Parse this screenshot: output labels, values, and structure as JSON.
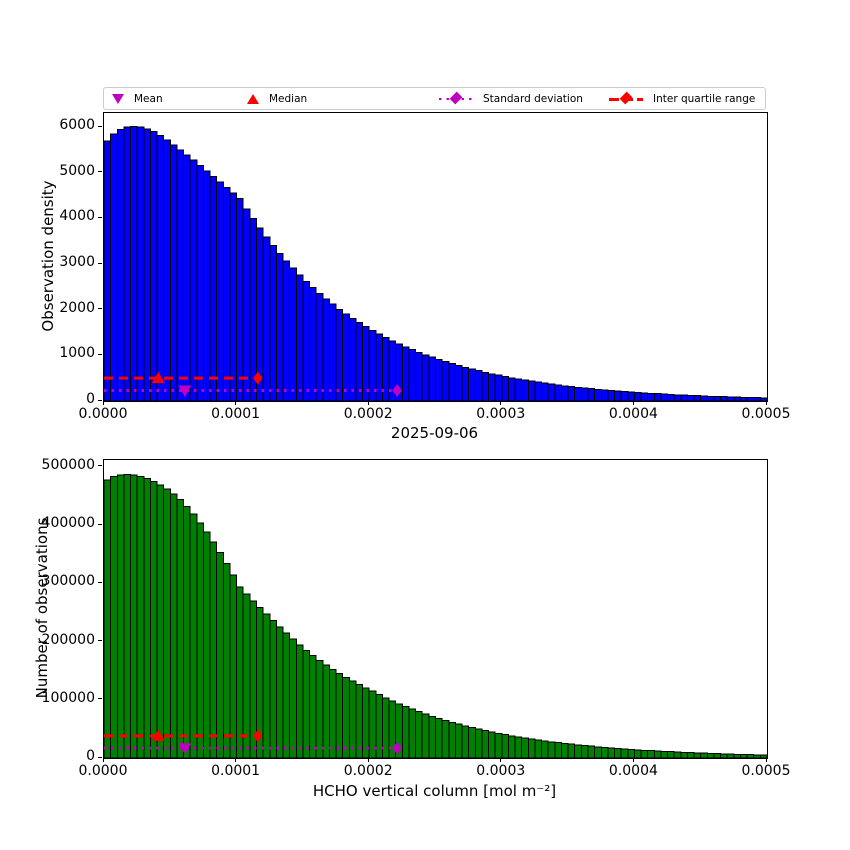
{
  "legend": {
    "items": [
      {
        "label": "Mean",
        "marker": "triangle-down-icon",
        "color": "#BF00BF"
      },
      {
        "label": "Median",
        "marker": "triangle-up-icon",
        "color": "#FF0000"
      },
      {
        "label": "Standard deviation",
        "marker": "dotted-line-diamond-icon",
        "color": "#BF00BF"
      },
      {
        "label": "Inter quartile range",
        "marker": "dashed-line-diamond-icon",
        "color": "#FF0000"
      }
    ]
  },
  "chart_data": [
    {
      "type": "bar",
      "name": "observation-density-histogram",
      "bar_color": "#0000FF",
      "edge_color": "#000000",
      "ylabel": "Observation density",
      "xlabel": "2025-09-06",
      "xlim": [
        0,
        0.0005
      ],
      "ylim": [
        0,
        6310
      ],
      "x_tick_values": [
        0,
        0.0001,
        0.0002,
        0.0003,
        0.0004,
        0.0005
      ],
      "x_tick_labels": [
        "0.0000",
        "0.0001",
        "0.0002",
        "0.0003",
        "0.0004",
        "0.0005"
      ],
      "y_tick_values": [
        0,
        1000,
        2000,
        3000,
        4000,
        5000,
        6000
      ],
      "y_tick_labels": [
        "0",
        "1000",
        "2000",
        "3000",
        "4000",
        "5000",
        "6000"
      ],
      "bin_start": 0,
      "bin_width": 5e-06,
      "values": [
        5700,
        5850,
        5950,
        6000,
        6010,
        6000,
        5960,
        5900,
        5820,
        5720,
        5610,
        5500,
        5390,
        5280,
        5160,
        5040,
        4920,
        4800,
        4680,
        4560,
        4440,
        4210,
        3995,
        3790,
        3595,
        3410,
        3235,
        3070,
        2910,
        2760,
        2620,
        2485,
        2355,
        2235,
        2120,
        2010,
        1905,
        1810,
        1715,
        1630,
        1545,
        1465,
        1390,
        1320,
        1250,
        1185,
        1125,
        1065,
        1010,
        960,
        910,
        865,
        820,
        775,
        735,
        700,
        663,
        629,
        597,
        566,
        537,
        509,
        483,
        458,
        434,
        412,
        391,
        371,
        352,
        334,
        317,
        300,
        285,
        270,
        256,
        243,
        230,
        219,
        207,
        197,
        187,
        177,
        168,
        159,
        151,
        143,
        136,
        129,
        122,
        116,
        110,
        104,
        99,
        94,
        89,
        84,
        80,
        76,
        72,
        68
      ],
      "annotations": [
        {
          "name": "iqr-line",
          "type": "hline",
          "style": "dashed",
          "color": "#FF0000",
          "y": 500,
          "x1": 0,
          "x2": 0.000116
        },
        {
          "name": "iqr-marker",
          "type": "diamond",
          "color": "#FF0000",
          "x": 0.000116,
          "y": 500
        },
        {
          "name": "median-marker",
          "type": "triangle-up",
          "color": "#FF0000",
          "x": 4.1e-05,
          "y": 500
        },
        {
          "name": "std-line",
          "type": "hline",
          "style": "dotted",
          "color": "#BF00BF",
          "y": 230,
          "x1": 0,
          "x2": 0.000221
        },
        {
          "name": "std-marker",
          "type": "diamond",
          "color": "#BF00BF",
          "x": 0.000221,
          "y": 230
        },
        {
          "name": "mean-marker",
          "type": "triangle-down",
          "color": "#BF00BF",
          "x": 6.1e-05,
          "y": 230
        }
      ]
    },
    {
      "type": "bar",
      "name": "number-of-observations-histogram",
      "bar_color": "#008000",
      "edge_color": "#000000",
      "ylabel": "Number of observations",
      "xlabel": "HCHO vertical column [mol m⁻²]",
      "xlim": [
        0,
        0.0005
      ],
      "ylim": [
        0,
        512000
      ],
      "x_tick_values": [
        0,
        0.0001,
        0.0002,
        0.0003,
        0.0004,
        0.0005
      ],
      "x_tick_labels": [
        "0.0000",
        "0.0001",
        "0.0002",
        "0.0003",
        "0.0004",
        "0.0005"
      ],
      "y_tick_values": [
        0,
        100000,
        200000,
        300000,
        400000,
        500000
      ],
      "y_tick_labels": [
        "0",
        "100000",
        "200000",
        "300000",
        "400000",
        "500000"
      ],
      "bin_start": 0,
      "bin_width": 5e-06,
      "values": [
        478000,
        484000,
        486500,
        487000,
        486000,
        483500,
        480000,
        475000,
        469000,
        462000,
        454000,
        444000,
        432000,
        419000,
        404000,
        388000,
        371000,
        353000,
        334000,
        314000,
        294000,
        282000,
        270000,
        258500,
        247000,
        236000,
        225000,
        214500,
        204500,
        194500,
        185000,
        176000,
        167500,
        159500,
        152000,
        145000,
        138500,
        132000,
        126000,
        120500,
        115000,
        109000,
        103500,
        98200,
        93200,
        88400,
        83900,
        79600,
        75500,
        71600,
        68000,
        64500,
        61200,
        58100,
        55100,
        52300,
        49600,
        47100,
        44700,
        42400,
        40200,
        38100,
        36200,
        34300,
        32600,
        30900,
        29300,
        27800,
        26400,
        25000,
        23700,
        22500,
        21400,
        20300,
        19200,
        18200,
        17300,
        16400,
        15600,
        14800,
        14000,
        13300,
        12600,
        12000,
        11400,
        10800,
        10200,
        9700,
        9200,
        8700,
        8300,
        7900,
        7500,
        7100,
        6700,
        6400,
        6100,
        5800,
        5500,
        5200
      ],
      "annotations": [
        {
          "name": "iqr-line",
          "type": "hline",
          "style": "dashed",
          "color": "#FF0000",
          "y": 38000,
          "x1": 0,
          "x2": 0.000116
        },
        {
          "name": "iqr-marker",
          "type": "diamond",
          "color": "#FF0000",
          "x": 0.000116,
          "y": 38000
        },
        {
          "name": "median-marker",
          "type": "triangle-up",
          "color": "#FF0000",
          "x": 4.1e-05,
          "y": 38000
        },
        {
          "name": "std-line",
          "type": "hline",
          "style": "dotted",
          "color": "#BF00BF",
          "y": 17000,
          "x1": 0,
          "x2": 0.000221
        },
        {
          "name": "std-marker",
          "type": "diamond",
          "color": "#BF00BF",
          "x": 0.000221,
          "y": 17000
        },
        {
          "name": "mean-marker",
          "type": "triangle-down",
          "color": "#BF00BF",
          "x": 6.1e-05,
          "y": 17000
        }
      ]
    }
  ]
}
